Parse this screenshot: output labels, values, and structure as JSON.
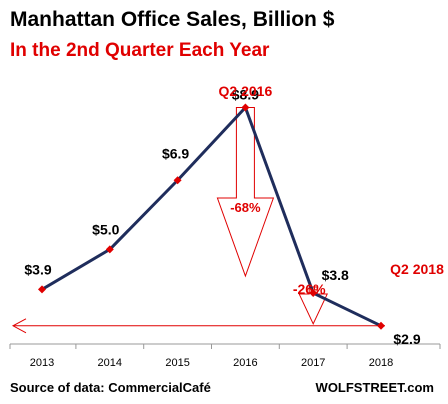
{
  "title": "Manhattan Office Sales, Billion $",
  "subtitle": "In the 2nd Quarter Each Year",
  "source": "Source of data: CommercialCafé",
  "brand": "WOLFSTREET.com",
  "colors": {
    "line": "#1f2d5c",
    "marker": "#e00000",
    "accent": "#e00000",
    "axis": "#999999",
    "text": "#000000"
  },
  "chart_data": {
    "type": "line",
    "categories": [
      "2013",
      "2014",
      "2015",
      "2016",
      "2017",
      "2018"
    ],
    "series": [
      {
        "values": [
          3.9,
          5.0,
          6.9,
          8.9,
          3.8,
          2.9
        ],
        "labels": [
          "$3.9",
          "$5.0",
          "$6.9",
          "$8.9",
          "$3.8",
          "$2.9"
        ]
      }
    ],
    "ylim": [
      2.4,
      9.6
    ],
    "grid": false,
    "legend": "none",
    "annotations": [
      {
        "text": "Q2 2016",
        "category": "2016"
      },
      {
        "text": "Q2 2018",
        "category": "2018"
      },
      {
        "text": "-68%",
        "from": "2016",
        "to": "2018"
      },
      {
        "text": "-26%",
        "from": "2017",
        "to": "2018"
      }
    ]
  }
}
